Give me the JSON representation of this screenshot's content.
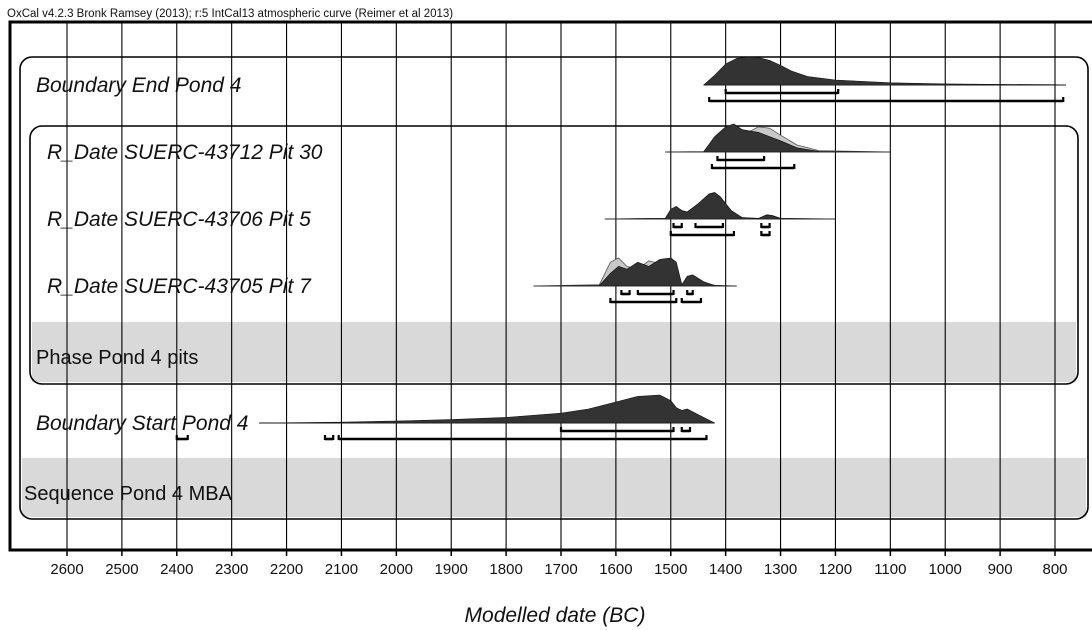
{
  "chart_data": {
    "type": "area",
    "header": "OxCal v4.2.3 Bronk Ramsey (2013); r:5 IntCal13 atmospheric curve (Reimer et al 2013)",
    "xlabel": "Modelled date (BC)",
    "xlim": [
      2700,
      780
    ],
    "x_ticks": [
      2600,
      2500,
      2400,
      2300,
      2200,
      2100,
      2000,
      1900,
      1800,
      1700,
      1600,
      1500,
      1400,
      1300,
      1200,
      1100,
      1000,
      900,
      800
    ],
    "grid": true,
    "groups": [
      {
        "label": "Sequence Pond 4 MBA",
        "kind": "sequence"
      },
      {
        "label": "Phase Pond 4 pits",
        "kind": "phase"
      }
    ],
    "series": [
      {
        "label": "Boundary End Pond 4",
        "row": 0,
        "posterior": [
          [
            1440,
            0
          ],
          [
            1420,
            0.35
          ],
          [
            1400,
            0.75
          ],
          [
            1380,
            0.95
          ],
          [
            1360,
            1
          ],
          [
            1340,
            0.98
          ],
          [
            1320,
            0.88
          ],
          [
            1300,
            0.7
          ],
          [
            1280,
            0.5
          ],
          [
            1250,
            0.3
          ],
          [
            1200,
            0.18
          ],
          [
            1100,
            0.08
          ],
          [
            1000,
            0.04
          ],
          [
            900,
            0.02
          ],
          [
            800,
            0.01
          ],
          [
            780,
            0
          ]
        ],
        "prior": [],
        "range_68": [
          [
            1400,
            1195
          ]
        ],
        "range_95": [
          [
            1430,
            785
          ]
        ]
      },
      {
        "label": "R_Date SUERC-43712 Pit 30",
        "row": 1,
        "posterior": [
          [
            1510,
            0
          ],
          [
            1440,
            0.01
          ],
          [
            1420,
            0.55
          ],
          [
            1400,
            0.9
          ],
          [
            1385,
            1
          ],
          [
            1370,
            0.8
          ],
          [
            1355,
            0.75
          ],
          [
            1340,
            0.7
          ],
          [
            1320,
            0.55
          ],
          [
            1300,
            0.4
          ],
          [
            1270,
            0.15
          ],
          [
            1230,
            0.02
          ],
          [
            1100,
            0
          ]
        ],
        "prior": [
          [
            1510,
            0
          ],
          [
            1440,
            0.01
          ],
          [
            1420,
            0.4
          ],
          [
            1400,
            0.6
          ],
          [
            1385,
            0.65
          ],
          [
            1370,
            0.6
          ],
          [
            1355,
            0.75
          ],
          [
            1340,
            0.9
          ],
          [
            1320,
            0.85
          ],
          [
            1300,
            0.6
          ],
          [
            1270,
            0.25
          ],
          [
            1230,
            0.05
          ],
          [
            1100,
            0
          ]
        ],
        "range_68": [
          [
            1415,
            1330
          ]
        ],
        "range_95": [
          [
            1425,
            1275
          ]
        ]
      },
      {
        "label": "R_Date SUERC-43706 Pit 5",
        "row": 2,
        "posterior": [
          [
            1620,
            0
          ],
          [
            1510,
            0.02
          ],
          [
            1500,
            0.35
          ],
          [
            1490,
            0.45
          ],
          [
            1480,
            0.3
          ],
          [
            1470,
            0.25
          ],
          [
            1450,
            0.55
          ],
          [
            1430,
            0.9
          ],
          [
            1420,
            0.95
          ],
          [
            1410,
            0.8
          ],
          [
            1390,
            0.3
          ],
          [
            1370,
            0.05
          ],
          [
            1340,
            0.02
          ],
          [
            1325,
            0.15
          ],
          [
            1315,
            0.12
          ],
          [
            1300,
            0.02
          ],
          [
            1200,
            0
          ]
        ],
        "prior": [
          [
            1620,
            0
          ],
          [
            1510,
            0.02
          ],
          [
            1500,
            0.33
          ],
          [
            1490,
            0.43
          ],
          [
            1480,
            0.3
          ],
          [
            1470,
            0.25
          ],
          [
            1450,
            0.53
          ],
          [
            1430,
            0.88
          ],
          [
            1420,
            0.93
          ],
          [
            1410,
            0.78
          ],
          [
            1390,
            0.3
          ],
          [
            1370,
            0.05
          ],
          [
            1340,
            0.02
          ],
          [
            1325,
            0.15
          ],
          [
            1315,
            0.12
          ],
          [
            1300,
            0.02
          ],
          [
            1200,
            0
          ]
        ],
        "range_68": [
          [
            1495,
            1480
          ],
          [
            1455,
            1405
          ],
          [
            1335,
            1320
          ]
        ],
        "range_95": [
          [
            1500,
            1385
          ],
          [
            1335,
            1320
          ]
        ]
      },
      {
        "label": "R_Date SUERC-43705 Pit 7",
        "row": 3,
        "posterior": [
          [
            1750,
            0
          ],
          [
            1630,
            0.02
          ],
          [
            1610,
            0.45
          ],
          [
            1595,
            0.7
          ],
          [
            1580,
            0.6
          ],
          [
            1560,
            0.85
          ],
          [
            1540,
            0.7
          ],
          [
            1520,
            0.95
          ],
          [
            1500,
            1
          ],
          [
            1490,
            0.85
          ],
          [
            1480,
            0.05
          ],
          [
            1470,
            0.35
          ],
          [
            1460,
            0.4
          ],
          [
            1440,
            0.15
          ],
          [
            1420,
            0.02
          ],
          [
            1380,
            0
          ]
        ],
        "prior": [
          [
            1750,
            0
          ],
          [
            1630,
            0.05
          ],
          [
            1610,
            0.85
          ],
          [
            1595,
            1
          ],
          [
            1580,
            0.7
          ],
          [
            1560,
            0.6
          ],
          [
            1540,
            0.9
          ],
          [
            1520,
            0.8
          ],
          [
            1500,
            0.85
          ],
          [
            1490,
            0.75
          ],
          [
            1480,
            0.05
          ],
          [
            1470,
            0.25
          ],
          [
            1460,
            0.3
          ],
          [
            1440,
            0.12
          ],
          [
            1420,
            0.02
          ],
          [
            1380,
            0
          ]
        ],
        "range_68": [
          [
            1590,
            1575
          ],
          [
            1560,
            1495
          ],
          [
            1470,
            1460
          ]
        ],
        "range_95": [
          [
            1610,
            1490
          ],
          [
            1480,
            1445
          ]
        ]
      },
      {
        "label": "Boundary Start Pond 4",
        "row": 5,
        "posterior": [
          [
            2250,
            0
          ],
          [
            2100,
            0.03
          ],
          [
            2000,
            0.07
          ],
          [
            1900,
            0.12
          ],
          [
            1800,
            0.2
          ],
          [
            1700,
            0.35
          ],
          [
            1650,
            0.5
          ],
          [
            1600,
            0.75
          ],
          [
            1560,
            0.95
          ],
          [
            1520,
            1
          ],
          [
            1500,
            0.8
          ],
          [
            1490,
            0.55
          ],
          [
            1480,
            0.45
          ],
          [
            1470,
            0.5
          ],
          [
            1450,
            0.3
          ],
          [
            1420,
            0
          ]
        ],
        "prior": [],
        "range_68": [
          [
            1700,
            1495
          ],
          [
            1480,
            1465
          ]
        ],
        "range_95": [
          [
            2400,
            2380
          ],
          [
            2130,
            2115
          ],
          [
            2105,
            1435
          ]
        ]
      }
    ]
  }
}
